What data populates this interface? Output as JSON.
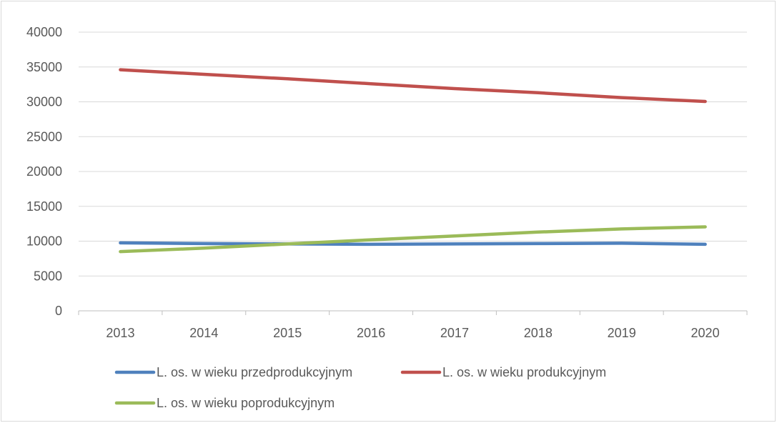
{
  "chart_data": {
    "type": "line",
    "title": "",
    "xlabel": "",
    "ylabel": "",
    "categories": [
      "2013",
      "2014",
      "2015",
      "2016",
      "2017",
      "2018",
      "2019",
      "2020"
    ],
    "ylim": [
      0,
      40000
    ],
    "yticks": [
      "0",
      "5000",
      "10000",
      "15000",
      "20000",
      "25000",
      "30000",
      "35000",
      "40000"
    ],
    "grid": true,
    "legend_position": "bottom",
    "series": [
      {
        "name": "L. os. w wieku przedprodukcyjnym",
        "color": "#4f81bd",
        "values": [
          9750,
          9650,
          9600,
          9550,
          9600,
          9650,
          9700,
          9550
        ]
      },
      {
        "name": "L. os. w wieku produkcyjnym",
        "color": "#c0504d",
        "values": [
          34600,
          33950,
          33300,
          32600,
          31900,
          31300,
          30600,
          30050
        ]
      },
      {
        "name": "L. os. w wieku poprodukcyjnym",
        "color": "#9bbb59",
        "values": [
          8500,
          9000,
          9600,
          10200,
          10750,
          11300,
          11750,
          12050
        ]
      }
    ]
  }
}
